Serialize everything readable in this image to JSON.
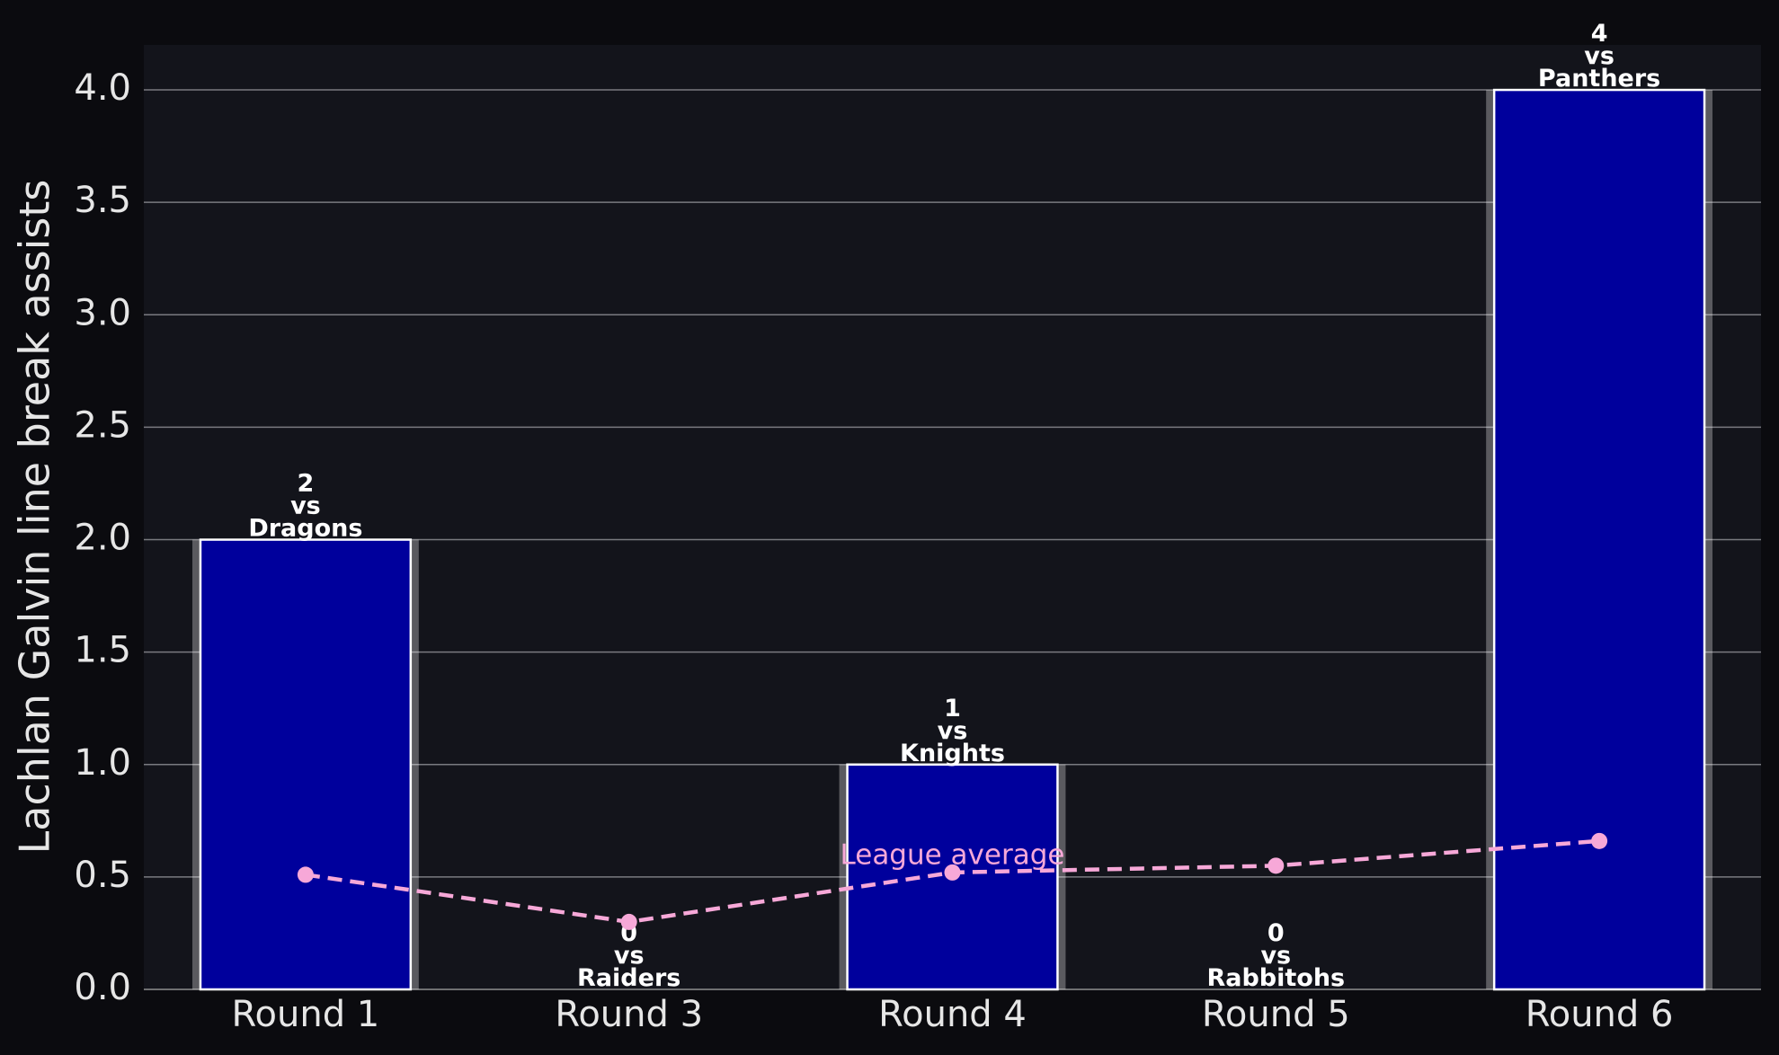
{
  "chart_data": {
    "type": "bar",
    "y_label": "Lachlan Galvin line break assists",
    "categories": [
      "Round 1",
      "Round 3",
      "Round 4",
      "Round 5",
      "Round 6"
    ],
    "values": [
      2,
      0,
      1,
      0,
      4
    ],
    "value_labels": [
      "2\nvs\nDragons",
      "0\nvs\nRaiders",
      "1\nvs\nKnights",
      "0\nvs\nRabbitohs",
      "4\nvs\nPanthers"
    ],
    "color": "#00009c",
    "series": [
      {
        "name": "League average",
        "color": "#f7a8d8",
        "values": [
          0.51,
          0.3,
          0.52,
          0.55,
          0.66
        ]
      }
    ],
    "ylim": [
      0,
      4.2
    ],
    "yticks": [
      {
        "value": 0,
        "label": "0.0"
      },
      0.5,
      {
        "value": 1,
        "label": "1.0"
      },
      1.5,
      {
        "value": 2,
        "label": "2.0"
      },
      2.5,
      {
        "value": 3,
        "label": "3.0"
      },
      3.5,
      {
        "value": 4,
        "label": "4.0"
      }
    ],
    "grid": true
  }
}
